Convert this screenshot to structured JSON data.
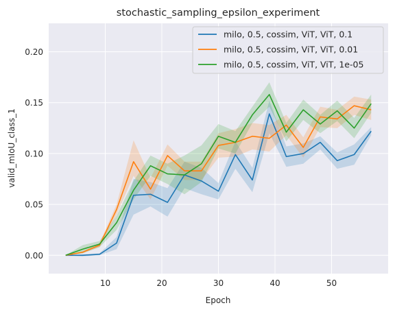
{
  "chart_data": {
    "type": "line",
    "title": "stochastic_sampling_epsilon_experiment",
    "xlabel": "Epoch",
    "ylabel": "valid_mIoU_class_1",
    "xlim": [
      0,
      60
    ],
    "ylim": [
      -0.018,
      0.228
    ],
    "xticks": [
      10,
      20,
      30,
      40,
      50
    ],
    "yticks": [
      0.0,
      0.05,
      0.1,
      0.15,
      0.2
    ],
    "ytick_labels": [
      "0.00",
      "0.05",
      "0.10",
      "0.15",
      "0.20"
    ],
    "grid": true,
    "legend_position": "top-right",
    "background": "#eaeaf2",
    "x": [
      3,
      6,
      9,
      12,
      15,
      18,
      21,
      24,
      27,
      30,
      33,
      36,
      39,
      42,
      45,
      48,
      51,
      54,
      57
    ],
    "series": [
      {
        "name": "milo, 0.5, cossim, ViT, ViT, 0.1",
        "color": "#1f77b4",
        "values": [
          0.0,
          0.0,
          0.001,
          0.012,
          0.059,
          0.06,
          0.052,
          0.079,
          0.073,
          0.063,
          0.099,
          0.074,
          0.139,
          0.097,
          0.1,
          0.111,
          0.093,
          0.099,
          0.122
        ],
        "lower": [
          0.0,
          -0.001,
          0.0,
          0.006,
          0.04,
          0.048,
          0.038,
          0.066,
          0.06,
          0.055,
          0.085,
          0.062,
          0.12,
          0.087,
          0.09,
          0.104,
          0.085,
          0.089,
          0.118
        ],
        "upper": [
          0.0,
          0.001,
          0.002,
          0.018,
          0.075,
          0.072,
          0.066,
          0.092,
          0.086,
          0.071,
          0.112,
          0.086,
          0.152,
          0.107,
          0.11,
          0.117,
          0.101,
          0.109,
          0.126
        ]
      },
      {
        "name": "milo, 0.5, cossim, ViT, ViT, 0.01",
        "color": "#ff7f0e",
        "values": [
          0.0,
          0.003,
          0.01,
          0.045,
          0.092,
          0.065,
          0.098,
          0.083,
          0.083,
          0.108,
          0.111,
          0.117,
          0.115,
          0.128,
          0.106,
          0.136,
          0.134,
          0.147,
          0.143
        ],
        "lower": [
          0.0,
          0.002,
          0.008,
          0.04,
          0.078,
          0.055,
          0.088,
          0.074,
          0.074,
          0.096,
          0.097,
          0.104,
          0.102,
          0.118,
          0.096,
          0.126,
          0.125,
          0.138,
          0.133
        ],
        "upper": [
          0.0,
          0.004,
          0.012,
          0.05,
          0.113,
          0.076,
          0.109,
          0.092,
          0.092,
          0.12,
          0.124,
          0.13,
          0.128,
          0.138,
          0.116,
          0.146,
          0.143,
          0.156,
          0.153
        ]
      },
      {
        "name": "milo, 0.5, cossim, ViT, ViT, 1e-05",
        "color": "#2ca02c",
        "values": [
          0.0,
          0.006,
          0.011,
          0.032,
          0.064,
          0.088,
          0.08,
          0.079,
          0.09,
          0.117,
          0.111,
          0.138,
          0.158,
          0.121,
          0.143,
          0.129,
          0.142,
          0.125,
          0.149
        ],
        "lower": [
          0.0,
          0.002,
          0.008,
          0.025,
          0.055,
          0.078,
          0.07,
          0.06,
          0.072,
          0.105,
          0.1,
          0.13,
          0.146,
          0.112,
          0.133,
          0.12,
          0.132,
          0.115,
          0.14
        ],
        "upper": [
          0.0,
          0.01,
          0.014,
          0.039,
          0.073,
          0.098,
          0.09,
          0.098,
          0.108,
          0.129,
          0.122,
          0.146,
          0.17,
          0.13,
          0.153,
          0.138,
          0.152,
          0.135,
          0.158
        ]
      }
    ]
  }
}
